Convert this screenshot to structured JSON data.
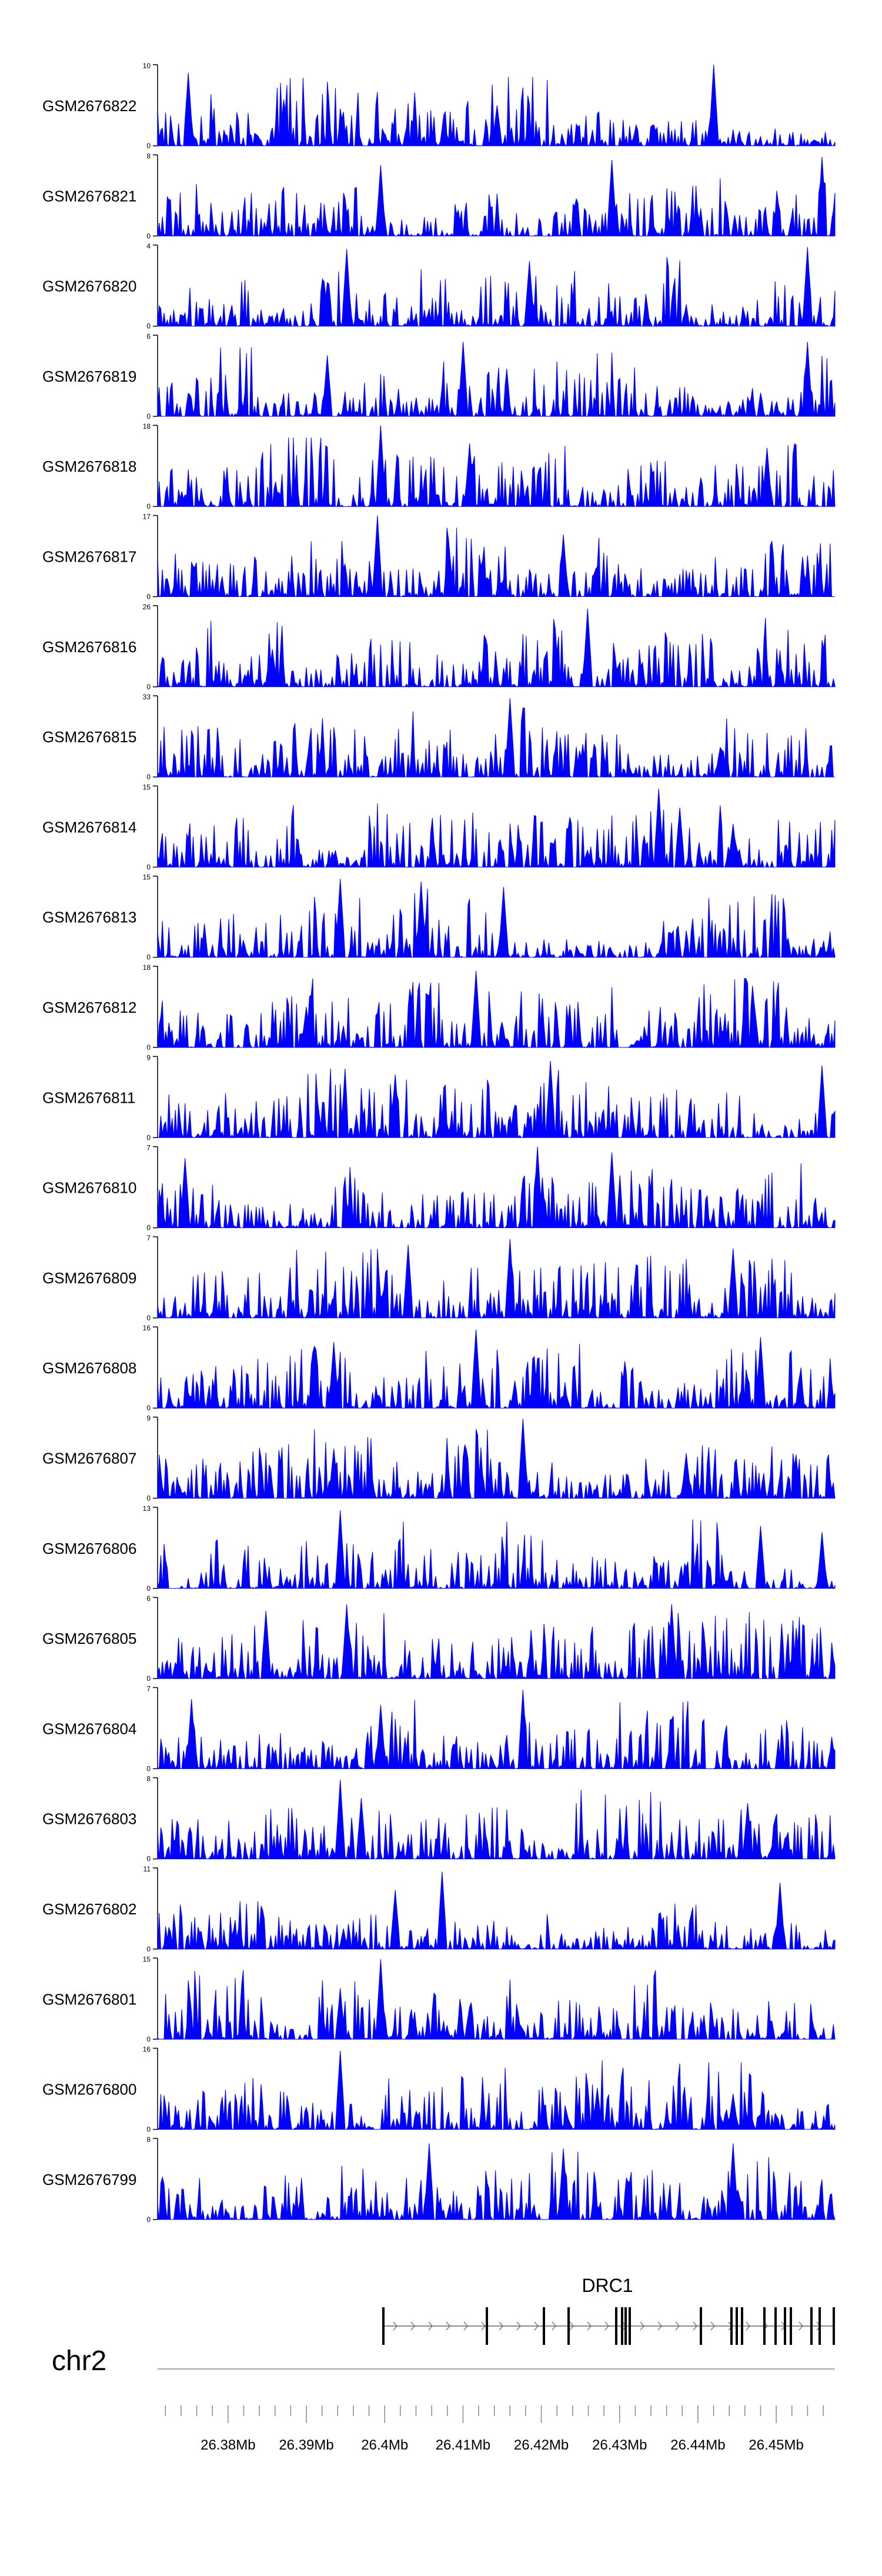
{
  "chart_data": {
    "type": "area",
    "title": "",
    "chromosome": "chr2",
    "series_color": "#0000ff",
    "gene": {
      "name": "DRC1",
      "strand": "+"
    },
    "genome_axis": {
      "range": [
        26.371,
        26.4575
      ],
      "tick_labels": [
        "26.38Mb",
        "26.39Mb",
        "26.4Mb",
        "26.41Mb",
        "26.42Mb",
        "26.43Mb",
        "26.44Mb",
        "26.45Mb"
      ],
      "tick_values": [
        26.38,
        26.39,
        26.4,
        26.41,
        26.42,
        26.43,
        26.44,
        26.45
      ]
    },
    "tracks": [
      {
        "name": "GSM2676822",
        "ymin": 0,
        "ymax": 10,
        "peaks": [
          [
            0.045,
            9
          ],
          [
            0.82,
            10
          ],
          [
            0.5,
            5
          ]
        ]
      },
      {
        "name": "GSM2676821",
        "ymin": 0,
        "ymax": 8,
        "peaks": [
          [
            0.33,
            7
          ],
          [
            0.67,
            7.5
          ],
          [
            0.98,
            7.8
          ]
        ]
      },
      {
        "name": "GSM2676820",
        "ymin": 0,
        "ymax": 4,
        "peaks": [
          [
            0.28,
            3.8
          ],
          [
            0.96,
            3.9
          ],
          [
            0.55,
            3.2
          ]
        ]
      },
      {
        "name": "GSM2676819",
        "ymin": 0,
        "ymax": 6,
        "peaks": [
          [
            0.45,
            5.5
          ],
          [
            0.25,
            4.5
          ],
          [
            0.96,
            5.5
          ]
        ]
      },
      {
        "name": "GSM2676818",
        "ymin": 0,
        "ymax": 18,
        "peaks": [
          [
            0.33,
            18
          ],
          [
            0.46,
            14
          ],
          [
            0.9,
            13
          ]
        ]
      },
      {
        "name": "GSM2676817",
        "ymin": 0,
        "ymax": 17,
        "peaks": [
          [
            0.325,
            17
          ],
          [
            0.43,
            12
          ],
          [
            0.6,
            13
          ]
        ]
      },
      {
        "name": "GSM2676816",
        "ymin": 0,
        "ymax": 26,
        "peaks": [
          [
            0.635,
            25
          ],
          [
            0.17,
            12
          ],
          [
            0.92,
            8
          ]
        ]
      },
      {
        "name": "GSM2676815",
        "ymin": 0,
        "ymax": 33,
        "peaks": [
          [
            0.52,
            32
          ],
          [
            0.24,
            12
          ],
          [
            0.83,
            12
          ]
        ]
      },
      {
        "name": "GSM2676814",
        "ymin": 0,
        "ymax": 15,
        "peaks": [
          [
            0.74,
            14.5
          ],
          [
            0.77,
            11
          ],
          [
            0.85,
            8
          ]
        ]
      },
      {
        "name": "GSM2676813",
        "ymin": 0,
        "ymax": 15,
        "peaks": [
          [
            0.27,
            14.5
          ],
          [
            0.39,
            14
          ],
          [
            0.51,
            13
          ]
        ]
      },
      {
        "name": "GSM2676812",
        "ymin": 0,
        "ymax": 18,
        "peaks": [
          [
            0.47,
            17
          ],
          [
            0.22,
            9
          ],
          [
            0.88,
            10
          ]
        ]
      },
      {
        "name": "GSM2676811",
        "ymin": 0,
        "ymax": 9,
        "peaks": [
          [
            0.58,
            8.5
          ],
          [
            0.98,
            8
          ],
          [
            0.35,
            7
          ]
        ]
      },
      {
        "name": "GSM2676810",
        "ymin": 0,
        "ymax": 7,
        "peaks": [
          [
            0.56,
            7
          ],
          [
            0.67,
            6.5
          ],
          [
            0.04,
            6
          ]
        ]
      },
      {
        "name": "GSM2676809",
        "ymin": 0,
        "ymax": 7,
        "peaks": [
          [
            0.52,
            6.8
          ],
          [
            0.37,
            6.3
          ],
          [
            0.85,
            6
          ]
        ]
      },
      {
        "name": "GSM2676808",
        "ymin": 0,
        "ymax": 16,
        "peaks": [
          [
            0.47,
            15.5
          ],
          [
            0.26,
            13
          ],
          [
            0.89,
            14
          ]
        ]
      },
      {
        "name": "GSM2676807",
        "ymin": 0,
        "ymax": 9,
        "peaks": [
          [
            0.54,
            8.8
          ],
          [
            0.26,
            5.5
          ],
          [
            0.78,
            5
          ]
        ]
      },
      {
        "name": "GSM2676806",
        "ymin": 0,
        "ymax": 13,
        "peaks": [
          [
            0.27,
            12.5
          ],
          [
            0.89,
            10
          ],
          [
            0.98,
            9
          ]
        ]
      },
      {
        "name": "GSM2676805",
        "ymin": 0,
        "ymax": 6,
        "peaks": [
          [
            0.28,
            5.5
          ],
          [
            0.76,
            5.5
          ],
          [
            0.16,
            5
          ]
        ]
      },
      {
        "name": "GSM2676804",
        "ymin": 0,
        "ymax": 7,
        "peaks": [
          [
            0.54,
            6.8
          ],
          [
            0.05,
            6
          ],
          [
            0.33,
            5.5
          ]
        ]
      },
      {
        "name": "GSM2676803",
        "ymin": 0,
        "ymax": 8,
        "peaks": [
          [
            0.27,
            7.8
          ],
          [
            0.3,
            6
          ],
          [
            0.87,
            5.5
          ]
        ]
      },
      {
        "name": "GSM2676802",
        "ymin": 0,
        "ymax": 11,
        "peaks": [
          [
            0.42,
            10.5
          ],
          [
            0.35,
            8
          ],
          [
            0.92,
            9
          ]
        ]
      },
      {
        "name": "GSM2676801",
        "ymin": 0,
        "ymax": 15,
        "peaks": [
          [
            0.33,
            14.8
          ],
          [
            0.27,
            9
          ],
          [
            0.46,
            6
          ]
        ]
      },
      {
        "name": "GSM2676800",
        "ymin": 0,
        "ymax": 16,
        "peaks": [
          [
            0.27,
            15.5
          ],
          [
            0.65,
            8
          ],
          [
            0.85,
            7
          ]
        ]
      },
      {
        "name": "GSM2676799",
        "ymin": 0,
        "ymax": 8,
        "peaks": [
          [
            0.4,
            7.5
          ],
          [
            0.6,
            7
          ],
          [
            0.85,
            7.5
          ]
        ]
      }
    ]
  }
}
